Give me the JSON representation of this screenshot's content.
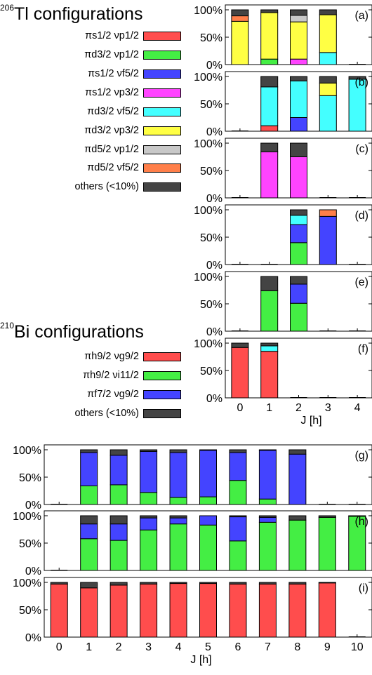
{
  "legends": [
    {
      "title_sup": "206",
      "title": "Tl configurations",
      "items": [
        {
          "label": "πs1/2 νp1/2",
          "color": "#ff4d4d"
        },
        {
          "label": "πd3/2 νp1/2",
          "color": "#44ee44"
        },
        {
          "label": "πs1/2 νf5/2",
          "color": "#4444ff"
        },
        {
          "label": "πs1/2 νp3/2",
          "color": "#ff44ff"
        },
        {
          "label": "πd3/2 νf5/2",
          "color": "#44ffff"
        },
        {
          "label": "πd3/2 νp3/2",
          "color": "#ffff44"
        },
        {
          "label": "πd5/2 νp1/2",
          "color": "#c8c8c8"
        },
        {
          "label": "πd5/2 νf5/2",
          "color": "#ff7f4a"
        },
        {
          "label": "others (<10%)",
          "color": "#444444"
        }
      ]
    },
    {
      "title_sup": "210",
      "title": "Bi configurations",
      "items": [
        {
          "label": "πh9/2 νg9/2",
          "color": "#ff4d4d"
        },
        {
          "label": "πh9/2 νi11/2",
          "color": "#44ee44"
        },
        {
          "label": "πf7/2 νg9/2",
          "color": "#4444ff"
        },
        {
          "label": "others (<10%)",
          "color": "#444444"
        }
      ]
    }
  ],
  "chart_data": [
    {
      "type": "bar",
      "stacked": true,
      "panel_label": "(a)",
      "x": [
        0,
        1,
        2,
        3,
        4
      ],
      "ylim": [
        0,
        100
      ],
      "yticks": [
        "0%",
        "50%",
        "100%"
      ],
      "bars": [
        {
          "x": 0,
          "segments": [
            {
              "config": "πd3/2 νp3/2",
              "value": 79
            },
            {
              "config": "πd5/2 νf5/2",
              "value": 10
            },
            {
              "config": "others (<10%)",
              "value": 11
            }
          ]
        },
        {
          "x": 1,
          "segments": [
            {
              "config": "πd3/2 νp1/2",
              "value": 10
            },
            {
              "config": "πd3/2 νp3/2",
              "value": 85
            },
            {
              "config": "others (<10%)",
              "value": 5
            }
          ]
        },
        {
          "x": 2,
          "segments": [
            {
              "config": "πs1/2 νp3/2",
              "value": 10
            },
            {
              "config": "πd3/2 νp3/2",
              "value": 68
            },
            {
              "config": "πd5/2 νp1/2",
              "value": 12
            },
            {
              "config": "others (<10%)",
              "value": 10
            }
          ]
        },
        {
          "x": 3,
          "segments": [
            {
              "config": "πd3/2 νf5/2",
              "value": 22
            },
            {
              "config": "πd3/2 νp3/2",
              "value": 69
            },
            {
              "config": "others (<10%)",
              "value": 9
            }
          ]
        }
      ]
    },
    {
      "type": "bar",
      "stacked": true,
      "panel_label": "(b)",
      "x": [
        0,
        1,
        2,
        3,
        4
      ],
      "ylim": [
        0,
        100
      ],
      "yticks": [
        "0%",
        "50%",
        "100%"
      ],
      "bars": [
        {
          "x": 1,
          "segments": [
            {
              "config": "πs1/2 νp1/2",
              "value": 10
            },
            {
              "config": "πd3/2 νf5/2",
              "value": 71
            },
            {
              "config": "others (<10%)",
              "value": 19
            }
          ]
        },
        {
          "x": 2,
          "segments": [
            {
              "config": "πs1/2 νf5/2",
              "value": 25
            },
            {
              "config": "πd3/2 νf5/2",
              "value": 67
            },
            {
              "config": "others (<10%)",
              "value": 8
            }
          ]
        },
        {
          "x": 3,
          "segments": [
            {
              "config": "πd3/2 νf5/2",
              "value": 65
            },
            {
              "config": "πd3/2 νp3/2",
              "value": 23
            },
            {
              "config": "others (<10%)",
              "value": 12
            }
          ]
        },
        {
          "x": 4,
          "segments": [
            {
              "config": "πd3/2 νf5/2",
              "value": 95
            },
            {
              "config": "others (<10%)",
              "value": 5
            }
          ]
        }
      ]
    },
    {
      "type": "bar",
      "stacked": true,
      "panel_label": "(c)",
      "x": [
        0,
        1,
        2,
        3,
        4
      ],
      "ylim": [
        0,
        100
      ],
      "yticks": [
        "0%",
        "50%",
        "100%"
      ],
      "bars": [
        {
          "x": 1,
          "segments": [
            {
              "config": "πs1/2 νp3/2",
              "value": 84
            },
            {
              "config": "others (<10%)",
              "value": 16
            }
          ]
        },
        {
          "x": 2,
          "segments": [
            {
              "config": "πs1/2 νp3/2",
              "value": 75
            },
            {
              "config": "others (<10%)",
              "value": 25
            }
          ]
        }
      ]
    },
    {
      "type": "bar",
      "stacked": true,
      "panel_label": "(d)",
      "x": [
        0,
        1,
        2,
        3,
        4
      ],
      "ylim": [
        0,
        100
      ],
      "yticks": [
        "0%",
        "50%",
        "100%"
      ],
      "bars": [
        {
          "x": 2,
          "segments": [
            {
              "config": "πd3/2 νp1/2",
              "value": 40
            },
            {
              "config": "πs1/2 νf5/2",
              "value": 33
            },
            {
              "config": "πd3/2 νf5/2",
              "value": 17
            },
            {
              "config": "others (<10%)",
              "value": 10
            }
          ]
        },
        {
          "x": 3,
          "segments": [
            {
              "config": "πs1/2 νf5/2",
              "value": 88
            },
            {
              "config": "πd5/2 νf5/2",
              "value": 12
            }
          ]
        }
      ]
    },
    {
      "type": "bar",
      "stacked": true,
      "panel_label": "(e)",
      "x": [
        0,
        1,
        2,
        3,
        4
      ],
      "ylim": [
        0,
        100
      ],
      "yticks": [
        "0%",
        "50%",
        "100%"
      ],
      "bars": [
        {
          "x": 1,
          "segments": [
            {
              "config": "πd3/2 νp1/2",
              "value": 74
            },
            {
              "config": "others (<10%)",
              "value": 26
            }
          ]
        },
        {
          "x": 2,
          "segments": [
            {
              "config": "πd3/2 νp1/2",
              "value": 51
            },
            {
              "config": "πs1/2 νf5/2",
              "value": 35
            },
            {
              "config": "others (<10%)",
              "value": 14
            }
          ]
        }
      ]
    },
    {
      "type": "bar",
      "stacked": true,
      "panel_label": "(f)",
      "x": [
        0,
        1,
        2,
        3,
        4
      ],
      "ylim": [
        0,
        100
      ],
      "yticks": [
        "0%",
        "50%",
        "100%"
      ],
      "xticks": [
        "0",
        "1",
        "2",
        "3",
        "4"
      ],
      "xlabel": "J [h]",
      "bars": [
        {
          "x": 0,
          "segments": [
            {
              "config": "πs1/2 νp1/2",
              "value": 92
            },
            {
              "config": "others (<10%)",
              "value": 8
            }
          ]
        },
        {
          "x": 1,
          "segments": [
            {
              "config": "πs1/2 νp1/2",
              "value": 85
            },
            {
              "config": "πd3/2 νf5/2",
              "value": 10
            },
            {
              "config": "others (<10%)",
              "value": 5
            }
          ]
        }
      ]
    },
    {
      "type": "bar",
      "stacked": true,
      "panel_label": "(g)",
      "x": [
        0,
        1,
        2,
        3,
        4,
        5,
        6,
        7,
        8,
        9,
        10
      ],
      "ylim": [
        0,
        100
      ],
      "yticks": [
        "0%",
        "50%",
        "100%"
      ],
      "bars": [
        {
          "x": 1,
          "segments": [
            {
              "config": "πh9/2 νi11/2",
              "value": 34
            },
            {
              "config": "πf7/2 νg9/2",
              "value": 61
            },
            {
              "config": "others (<10%)",
              "value": 5
            }
          ]
        },
        {
          "x": 2,
          "segments": [
            {
              "config": "πh9/2 νi11/2",
              "value": 36
            },
            {
              "config": "πf7/2 νg9/2",
              "value": 54
            },
            {
              "config": "others (<10%)",
              "value": 10
            }
          ]
        },
        {
          "x": 3,
          "segments": [
            {
              "config": "πh9/2 νi11/2",
              "value": 22
            },
            {
              "config": "πf7/2 νg9/2",
              "value": 75
            },
            {
              "config": "others (<10%)",
              "value": 3
            }
          ]
        },
        {
          "x": 4,
          "segments": [
            {
              "config": "πh9/2 νi11/2",
              "value": 13
            },
            {
              "config": "πf7/2 νg9/2",
              "value": 82
            },
            {
              "config": "others (<10%)",
              "value": 5
            }
          ]
        },
        {
          "x": 5,
          "segments": [
            {
              "config": "πh9/2 νi11/2",
              "value": 14
            },
            {
              "config": "πf7/2 νg9/2",
              "value": 85
            },
            {
              "config": "others (<10%)",
              "value": 1
            }
          ]
        },
        {
          "x": 6,
          "segments": [
            {
              "config": "πh9/2 νi11/2",
              "value": 44
            },
            {
              "config": "πf7/2 νg9/2",
              "value": 51
            },
            {
              "config": "others (<10%)",
              "value": 5
            }
          ]
        },
        {
          "x": 7,
          "segments": [
            {
              "config": "πh9/2 νi11/2",
              "value": 10
            },
            {
              "config": "πf7/2 νg9/2",
              "value": 89
            },
            {
              "config": "others (<10%)",
              "value": 1
            }
          ]
        },
        {
          "x": 8,
          "segments": [
            {
              "config": "πf7/2 νg9/2",
              "value": 92
            },
            {
              "config": "others (<10%)",
              "value": 8
            }
          ]
        }
      ]
    },
    {
      "type": "bar",
      "stacked": true,
      "panel_label": "(h)",
      "x": [
        0,
        1,
        2,
        3,
        4,
        5,
        6,
        7,
        8,
        9,
        10
      ],
      "ylim": [
        0,
        100
      ],
      "yticks": [
        "0%",
        "50%",
        "100%"
      ],
      "bars": [
        {
          "x": 1,
          "segments": [
            {
              "config": "πh9/2 νi11/2",
              "value": 58
            },
            {
              "config": "πf7/2 νg9/2",
              "value": 27
            },
            {
              "config": "others (<10%)",
              "value": 15
            }
          ]
        },
        {
          "x": 2,
          "segments": [
            {
              "config": "πh9/2 νi11/2",
              "value": 55
            },
            {
              "config": "πf7/2 νg9/2",
              "value": 30
            },
            {
              "config": "others (<10%)",
              "value": 15
            }
          ]
        },
        {
          "x": 3,
          "segments": [
            {
              "config": "πh9/2 νi11/2",
              "value": 74
            },
            {
              "config": "πf7/2 νg9/2",
              "value": 22
            },
            {
              "config": "others (<10%)",
              "value": 4
            }
          ]
        },
        {
          "x": 4,
          "segments": [
            {
              "config": "πh9/2 νi11/2",
              "value": 85
            },
            {
              "config": "πf7/2 νg9/2",
              "value": 11
            },
            {
              "config": "others (<10%)",
              "value": 4
            }
          ]
        },
        {
          "x": 5,
          "segments": [
            {
              "config": "πh9/2 νi11/2",
              "value": 83
            },
            {
              "config": "πf7/2 νg9/2",
              "value": 17
            }
          ]
        },
        {
          "x": 6,
          "segments": [
            {
              "config": "πh9/2 νi11/2",
              "value": 54
            },
            {
              "config": "πf7/2 νg9/2",
              "value": 44
            },
            {
              "config": "others (<10%)",
              "value": 2
            }
          ]
        },
        {
          "x": 7,
          "segments": [
            {
              "config": "πh9/2 νi11/2",
              "value": 88
            },
            {
              "config": "πf7/2 νg9/2",
              "value": 9
            },
            {
              "config": "others (<10%)",
              "value": 3
            }
          ]
        },
        {
          "x": 8,
          "segments": [
            {
              "config": "πh9/2 νi11/2",
              "value": 92
            },
            {
              "config": "others (<10%)",
              "value": 8
            }
          ]
        },
        {
          "x": 9,
          "segments": [
            {
              "config": "πh9/2 νi11/2",
              "value": 97
            },
            {
              "config": "others (<10%)",
              "value": 3
            }
          ]
        },
        {
          "x": 10,
          "segments": [
            {
              "config": "πh9/2 νi11/2",
              "value": 99
            },
            {
              "config": "others (<10%)",
              "value": 1
            }
          ]
        }
      ]
    },
    {
      "type": "bar",
      "stacked": true,
      "panel_label": "(i)",
      "x": [
        0,
        1,
        2,
        3,
        4,
        5,
        6,
        7,
        8,
        9,
        10
      ],
      "ylim": [
        0,
        100
      ],
      "yticks": [
        "0%",
        "50%",
        "100%"
      ],
      "xticks": [
        "0",
        "1",
        "2",
        "3",
        "4",
        "5",
        "6",
        "7",
        "8",
        "9",
        "10"
      ],
      "xlabel": "J [h]",
      "bars": [
        {
          "x": 0,
          "segments": [
            {
              "config": "πh9/2 νg9/2",
              "value": 97
            },
            {
              "config": "others (<10%)",
              "value": 3
            }
          ]
        },
        {
          "x": 1,
          "segments": [
            {
              "config": "πh9/2 νg9/2",
              "value": 90
            },
            {
              "config": "others (<10%)",
              "value": 10
            }
          ]
        },
        {
          "x": 2,
          "segments": [
            {
              "config": "πh9/2 νg9/2",
              "value": 95
            },
            {
              "config": "others (<10%)",
              "value": 5
            }
          ]
        },
        {
          "x": 3,
          "segments": [
            {
              "config": "πh9/2 νg9/2",
              "value": 97
            },
            {
              "config": "others (<10%)",
              "value": 3
            }
          ]
        },
        {
          "x": 4,
          "segments": [
            {
              "config": "πh9/2 νg9/2",
              "value": 98
            },
            {
              "config": "others (<10%)",
              "value": 2
            }
          ]
        },
        {
          "x": 5,
          "segments": [
            {
              "config": "πh9/2 νg9/2",
              "value": 98
            },
            {
              "config": "others (<10%)",
              "value": 2
            }
          ]
        },
        {
          "x": 6,
          "segments": [
            {
              "config": "πh9/2 νg9/2",
              "value": 97
            },
            {
              "config": "others (<10%)",
              "value": 3
            }
          ]
        },
        {
          "x": 7,
          "segments": [
            {
              "config": "πh9/2 νg9/2",
              "value": 97
            },
            {
              "config": "others (<10%)",
              "value": 3
            }
          ]
        },
        {
          "x": 8,
          "segments": [
            {
              "config": "πh9/2 νg9/2",
              "value": 97
            },
            {
              "config": "others (<10%)",
              "value": 3
            }
          ]
        },
        {
          "x": 9,
          "segments": [
            {
              "config": "πh9/2 νg9/2",
              "value": 99
            },
            {
              "config": "others (<10%)",
              "value": 1
            }
          ]
        }
      ]
    }
  ]
}
